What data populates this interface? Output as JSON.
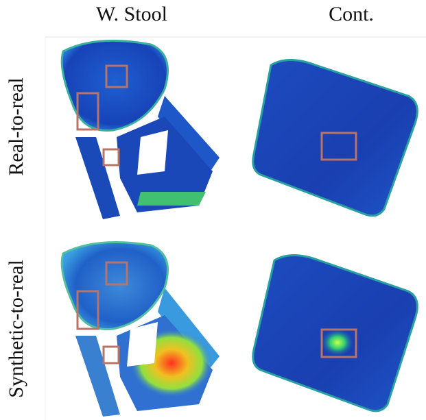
{
  "columns": [
    "W. Stool",
    "Cont."
  ],
  "rows": [
    "Real-to-real",
    "Synthetic-to-real"
  ]
}
